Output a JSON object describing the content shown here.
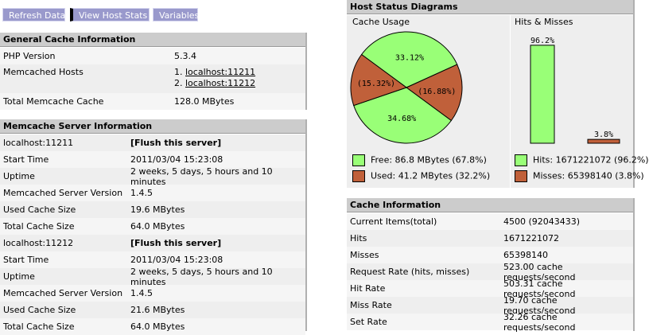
{
  "toolbar": {
    "refresh": "Refresh Data",
    "view_host_stats": "View Host Stats",
    "variables": "Variables"
  },
  "general": {
    "title": "General Cache Information",
    "php_version_label": "PHP Version",
    "php_version": "5.3.4",
    "hosts_label": "Memcached Hosts",
    "host1_prefix": "1.",
    "host1": "localhost:11211",
    "host2_prefix": "2.",
    "host2": "localhost:11212",
    "total_label": "Total Memcache Cache",
    "total": "128.0 MBytes"
  },
  "server_info": {
    "title": "Memcache Server Information",
    "flush_label": "[Flush this server]",
    "servers": [
      {
        "host": "localhost:11211",
        "rows": [
          {
            "label": "Start Time",
            "value": "2011/03/04 15:23:08"
          },
          {
            "label": "Uptime",
            "value": "2 weeks, 5 days, 5 hours and 10 minutes"
          },
          {
            "label": "Memcached Server Version",
            "value": "1.4.5"
          },
          {
            "label": "Used Cache Size",
            "value": "19.6 MBytes"
          },
          {
            "label": "Total Cache Size",
            "value": "64.0 MBytes"
          }
        ]
      },
      {
        "host": "localhost:11212",
        "rows": [
          {
            "label": "Start Time",
            "value": "2011/03/04 15:23:08"
          },
          {
            "label": "Uptime",
            "value": "2 weeks, 5 days, 5 hours and 10 minutes"
          },
          {
            "label": "Memcached Server Version",
            "value": "1.4.5"
          },
          {
            "label": "Used Cache Size",
            "value": "21.6 MBytes"
          },
          {
            "label": "Total Cache Size",
            "value": "64.0 MBytes"
          }
        ]
      }
    ]
  },
  "diagrams": {
    "title": "Host Status Diagrams",
    "cache_usage_title": "Cache Usage",
    "hits_misses_title": "Hits & Misses",
    "free_legend": "Free: 86.8 MBytes (67.8%)",
    "used_legend": "Used: 41.2 MBytes (32.2%)",
    "hits_legend": "Hits: 1671221072 (96.2%)",
    "misses_legend": "Misses: 65398140 (3.8%)",
    "colors": {
      "free": "#99ff77",
      "used": "#c0603a"
    }
  },
  "chart_data": [
    {
      "type": "pie",
      "title": "Cache Usage",
      "slices": [
        {
          "label": "33.12%",
          "value": 33.12,
          "color": "#99ff77"
        },
        {
          "label": "(16.88%)",
          "value": 16.88,
          "color": "#c0603a"
        },
        {
          "label": "34.68%",
          "value": 34.68,
          "color": "#99ff77"
        },
        {
          "label": "(15.32%)",
          "value": 15.32,
          "color": "#c0603a"
        }
      ]
    },
    {
      "type": "bar",
      "title": "Hits & Misses",
      "categories": [
        "Hits",
        "Misses"
      ],
      "values": [
        96.2,
        3.8
      ],
      "labels": [
        "96.2%",
        "3.8%"
      ],
      "colors": [
        "#99ff77",
        "#c0603a"
      ]
    }
  ],
  "cache_info": {
    "title": "Cache Information",
    "rows": [
      {
        "label": "Current Items(total)",
        "value": "4500 (92043433)"
      },
      {
        "label": "Hits",
        "value": "1671221072"
      },
      {
        "label": "Misses",
        "value": "65398140"
      },
      {
        "label": "Request Rate (hits, misses)",
        "value": "523.00 cache requests/second"
      },
      {
        "label": "Hit Rate",
        "value": "503.31 cache requests/second"
      },
      {
        "label": "Miss Rate",
        "value": "19.70 cache requests/second"
      },
      {
        "label": "Set Rate",
        "value": "32.26 cache requests/second"
      }
    ]
  }
}
